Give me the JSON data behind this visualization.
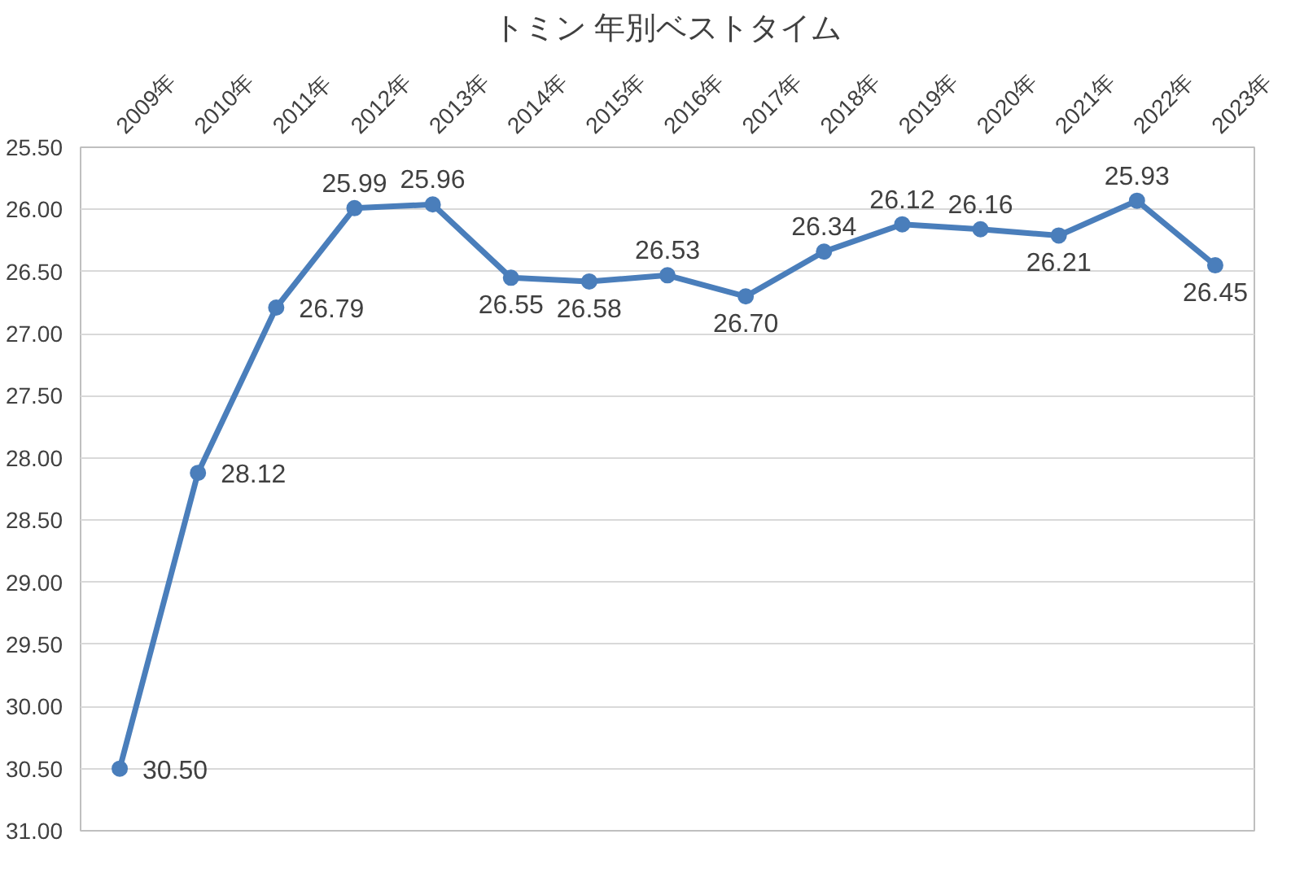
{
  "chart_data": {
    "type": "line",
    "title": "トミン 年別ベストタイム",
    "categories": [
      "2009年",
      "2010年",
      "2011年",
      "2012年",
      "2013年",
      "2014年",
      "2015年",
      "2016年",
      "2017年",
      "2018年",
      "2019年",
      "2020年",
      "2021年",
      "2022年",
      "2023年"
    ],
    "series": [
      {
        "color": "#4a7ebb",
        "values": [
          30.5,
          28.12,
          26.79,
          25.99,
          25.96,
          26.55,
          26.58,
          26.53,
          26.7,
          26.34,
          26.12,
          26.16,
          26.21,
          25.93,
          26.45
        ],
        "value_labels": [
          "30.50",
          "28.12",
          "26.79",
          "25.99",
          "25.96",
          "26.55",
          "26.58",
          "26.53",
          "26.70",
          "26.34",
          "26.12",
          "26.16",
          "26.21",
          "25.93",
          "26.45"
        ]
      }
    ],
    "ylim": [
      31.0,
      25.5
    ],
    "yticks": [
      {
        "value": 25.5,
        "label": "25.50"
      },
      {
        "value": 26.0,
        "label": "26.00"
      },
      {
        "value": 26.5,
        "label": "26.50"
      },
      {
        "value": 27.0,
        "label": "27.00"
      },
      {
        "value": 27.5,
        "label": "27.50"
      },
      {
        "value": 28.0,
        "label": "28.00"
      },
      {
        "value": 28.5,
        "label": "28.50"
      },
      {
        "value": 29.0,
        "label": "29.00"
      },
      {
        "value": 29.5,
        "label": "29.50"
      },
      {
        "value": 30.0,
        "label": "30.00"
      },
      {
        "value": 30.5,
        "label": "30.50"
      },
      {
        "value": 31.0,
        "label": "31.00"
      }
    ],
    "grid": "y",
    "marker": "circle",
    "line_style": "solid"
  }
}
